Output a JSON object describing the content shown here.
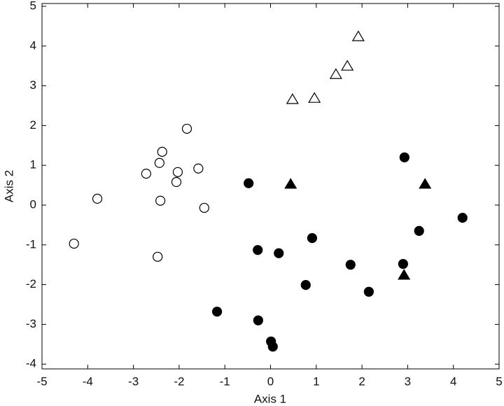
{
  "chart_data": {
    "type": "scatter",
    "x_label": "Axis 1",
    "y_label": "Axis 2",
    "xlim": [
      -5,
      5
    ],
    "ylim": [
      -4.12,
      5.07
    ],
    "xticks": [
      -5,
      -4,
      -3,
      -2,
      -1,
      0,
      1,
      2,
      3,
      4,
      5
    ],
    "yticks": [
      -4,
      -3,
      -2,
      -1,
      0,
      1,
      2,
      3,
      4,
      5
    ],
    "grid": false,
    "series": [
      {
        "marker": "circle",
        "filled": false,
        "color": "#000000",
        "x": [
          -4.3,
          -3.79,
          -2.72,
          -2.43,
          -2.37,
          -2.41,
          -2.47,
          -2.03,
          -2.06,
          -1.83,
          -1.58,
          -1.45
        ],
        "values": [
          -0.97,
          0.16,
          0.79,
          1.06,
          1.34,
          0.11,
          -1.3,
          0.83,
          0.58,
          1.92,
          0.92,
          -0.07
        ]
      },
      {
        "marker": "circle",
        "filled": true,
        "color": "#000000",
        "x": [
          -0.48,
          -0.28,
          0.18,
          -1.17,
          -0.27,
          0.01,
          0.05,
          0.91,
          0.77,
          1.75,
          2.15,
          2.9,
          2.93,
          3.25,
          4.2
        ],
        "values": [
          0.55,
          -1.13,
          -1.21,
          -2.68,
          -2.9,
          -3.43,
          -3.56,
          -0.83,
          -2.01,
          -1.5,
          -2.18,
          -1.48,
          1.2,
          -0.65,
          -0.32
        ]
      },
      {
        "marker": "triangle",
        "filled": false,
        "color": "#000000",
        "x": [
          0.48,
          0.96,
          1.43,
          1.68,
          1.92
        ],
        "values": [
          2.66,
          2.69,
          3.29,
          3.5,
          4.24
        ]
      },
      {
        "marker": "triangle",
        "filled": true,
        "color": "#000000",
        "x": [
          0.44,
          3.38,
          2.92
        ],
        "values": [
          0.53,
          0.53,
          -1.76
        ]
      }
    ]
  }
}
